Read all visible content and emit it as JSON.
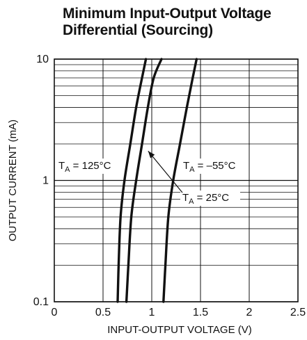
{
  "title_lines": [
    "Minimum Input-Output Voltage",
    "Differential (Sourcing)"
  ],
  "chart_data": {
    "type": "line",
    "title": "Minimum Input-Output Voltage Differential (Sourcing)",
    "xlabel": "INPUT-OUTPUT VOLTAGE (V)",
    "ylabel": "OUTPUT CURRENT (mA)",
    "xlim": [
      0,
      2.5
    ],
    "ylim": [
      0.1,
      10
    ],
    "y_scale": "log",
    "grid": true,
    "x_ticks": [
      0,
      0.5,
      1,
      1.5,
      2,
      2.5
    ],
    "x_tick_labels": [
      "0",
      "0.5",
      "1",
      "1.5",
      "2",
      "2.5"
    ],
    "y_ticks": [
      0.1,
      1,
      10
    ],
    "y_tick_labels": [
      "0.1",
      "1",
      "10"
    ],
    "line_color": "#111111",
    "series": [
      {
        "label_main": "T",
        "label_sub": "A",
        "label_rest": " = 125°C",
        "points": [
          [
            0.65,
            0.1
          ],
          [
            0.66,
            0.2
          ],
          [
            0.68,
            0.5
          ],
          [
            0.72,
            1.0
          ],
          [
            0.78,
            2.0
          ],
          [
            0.84,
            4.0
          ],
          [
            0.9,
            7.0
          ],
          [
            0.94,
            10
          ]
        ]
      },
      {
        "label_main": "T",
        "label_sub": "A",
        "label_rest": " = 25°C",
        "points": [
          [
            0.74,
            0.1
          ],
          [
            0.76,
            0.2
          ],
          [
            0.79,
            0.5
          ],
          [
            0.84,
            1.0
          ],
          [
            0.9,
            2.0
          ],
          [
            0.96,
            4.0
          ],
          [
            1.02,
            7.0
          ],
          [
            1.1,
            10
          ]
        ]
      },
      {
        "label_main": "T",
        "label_sub": "A",
        "label_rest": " = –55°C",
        "points": [
          [
            1.12,
            0.1
          ],
          [
            1.14,
            0.2
          ],
          [
            1.17,
            0.5
          ],
          [
            1.22,
            1.0
          ],
          [
            1.29,
            2.0
          ],
          [
            1.36,
            4.0
          ],
          [
            1.42,
            7.0
          ],
          [
            1.46,
            10
          ]
        ]
      }
    ]
  }
}
